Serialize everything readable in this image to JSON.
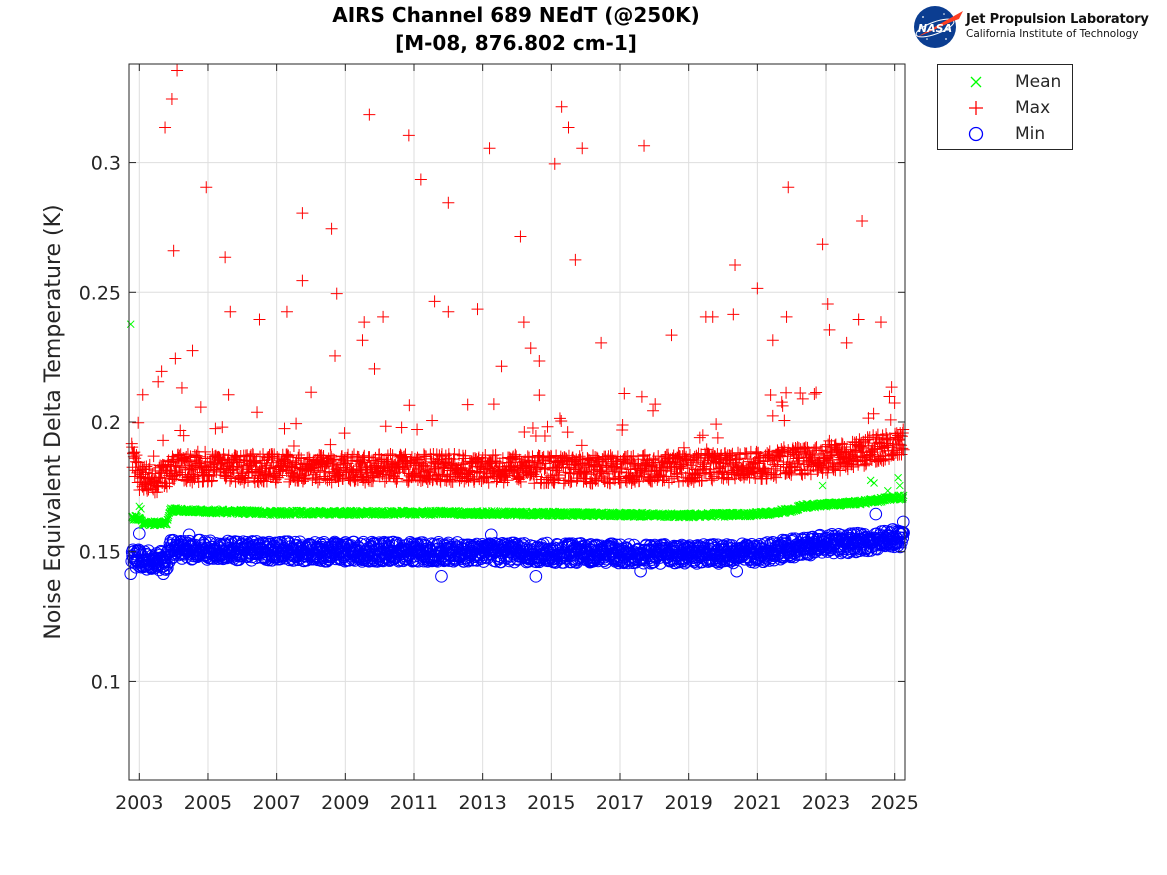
{
  "chart_data": {
    "type": "scatter",
    "title": "AIRS Channel 689 NEdT (@250K)",
    "subtitle": "[M-08, 876.802 cm-1]",
    "xlabel": "",
    "ylabel": "Noise Equivalent Delta Temperature (K)",
    "xlim": [
      2002.7,
      2025.3
    ],
    "ylim": [
      0.062,
      0.338
    ],
    "x_ticks": [
      2003,
      2005,
      2007,
      2009,
      2011,
      2013,
      2015,
      2017,
      2019,
      2021,
      2023,
      2025
    ],
    "x_tick_labels": [
      "2003",
      "2005",
      "2007",
      "2009",
      "2011",
      "2013",
      "2015",
      "2017",
      "2019",
      "2021",
      "2023",
      "2025"
    ],
    "y_ticks": [
      0.1,
      0.15,
      0.2,
      0.25,
      0.3
    ],
    "y_tick_labels": [
      "0.1",
      "0.15",
      "0.2",
      "0.25",
      "0.3"
    ],
    "grid": true,
    "legend_position": "outside-top-right",
    "series": [
      {
        "name": "Mean",
        "marker": "x",
        "color": "#00ff00",
        "trend": [
          [
            2002.8,
            0.163
          ],
          [
            2003.0,
            0.163
          ],
          [
            2003.1,
            0.161
          ],
          [
            2003.8,
            0.161
          ],
          [
            2003.9,
            0.166
          ],
          [
            2007.0,
            0.165
          ],
          [
            2012.0,
            0.165
          ],
          [
            2016.0,
            0.1645
          ],
          [
            2019.0,
            0.164
          ],
          [
            2021.0,
            0.1645
          ],
          [
            2022.0,
            0.166
          ],
          [
            2022.3,
            0.1675
          ],
          [
            2024.0,
            0.169
          ],
          [
            2025.2,
            0.171
          ]
        ],
        "points": [
          [
            2002.75,
            0.2377
          ],
          [
            2003.0,
            0.1675
          ],
          [
            2003.05,
            0.1665
          ],
          [
            2022.9,
            0.1755
          ],
          [
            2024.3,
            0.1775
          ],
          [
            2024.4,
            0.1765
          ],
          [
            2025.1,
            0.1785
          ],
          [
            2025.15,
            0.1755
          ],
          [
            2024.8,
            0.1735
          ]
        ]
      },
      {
        "name": "Max",
        "marker": "+",
        "color": "#ff0000",
        "trend": [
          [
            2002.8,
            0.185
          ],
          [
            2003.0,
            0.176
          ],
          [
            2003.8,
            0.176
          ],
          [
            2003.9,
            0.18
          ],
          [
            2008.0,
            0.18
          ],
          [
            2012.0,
            0.18
          ],
          [
            2016.0,
            0.1795
          ],
          [
            2019.0,
            0.18
          ],
          [
            2021.0,
            0.181
          ],
          [
            2022.0,
            0.1825
          ],
          [
            2023.0,
            0.1835
          ],
          [
            2024.0,
            0.186
          ],
          [
            2025.2,
            0.19
          ]
        ],
        "points": [
          [
            2003.1,
            0.2105
          ],
          [
            2003.55,
            0.2155
          ],
          [
            2003.65,
            0.2195
          ],
          [
            2003.75,
            0.3135
          ],
          [
            2003.95,
            0.3245
          ],
          [
            2004.0,
            0.266
          ],
          [
            2004.05,
            0.2245
          ],
          [
            2004.1,
            0.3355
          ],
          [
            2004.55,
            0.2275
          ],
          [
            2004.95,
            0.2905
          ],
          [
            2005.5,
            0.2635
          ],
          [
            2005.65,
            0.2425
          ],
          [
            2005.6,
            0.2105
          ],
          [
            2006.5,
            0.2395
          ],
          [
            2007.3,
            0.2425
          ],
          [
            2007.75,
            0.2805
          ],
          [
            2007.75,
            0.2545
          ],
          [
            2008.6,
            0.2745
          ],
          [
            2008.75,
            0.2495
          ],
          [
            2008.7,
            0.2255
          ],
          [
            2009.5,
            0.2315
          ],
          [
            2009.55,
            0.2385
          ],
          [
            2009.7,
            0.3185
          ],
          [
            2009.85,
            0.2205
          ],
          [
            2010.1,
            0.2405
          ],
          [
            2010.85,
            0.3105
          ],
          [
            2011.2,
            0.2935
          ],
          [
            2011.6,
            0.2465
          ],
          [
            2012.0,
            0.2425
          ],
          [
            2012.0,
            0.2845
          ],
          [
            2012.85,
            0.2435
          ],
          [
            2013.2,
            0.3055
          ],
          [
            2013.55,
            0.2215
          ],
          [
            2014.1,
            0.2715
          ],
          [
            2014.2,
            0.2385
          ],
          [
            2014.4,
            0.2285
          ],
          [
            2014.65,
            0.2235
          ],
          [
            2015.1,
            0.2995
          ],
          [
            2015.3,
            0.3215
          ],
          [
            2015.5,
            0.3135
          ],
          [
            2015.7,
            0.2625
          ],
          [
            2015.9,
            0.3055
          ],
          [
            2016.45,
            0.2305
          ],
          [
            2017.7,
            0.3065
          ],
          [
            2018.5,
            0.2335
          ],
          [
            2019.5,
            0.2405
          ],
          [
            2019.7,
            0.2405
          ],
          [
            2020.35,
            0.2605
          ],
          [
            2020.3,
            0.2415
          ],
          [
            2021.0,
            0.2515
          ],
          [
            2021.45,
            0.2315
          ],
          [
            2021.9,
            0.2905
          ],
          [
            2021.85,
            0.2405
          ],
          [
            2022.9,
            0.2685
          ],
          [
            2023.05,
            0.2455
          ],
          [
            2023.1,
            0.2355
          ],
          [
            2023.6,
            0.2305
          ],
          [
            2023.95,
            0.2395
          ],
          [
            2024.05,
            0.2775
          ],
          [
            2024.6,
            0.2385
          ]
        ]
      },
      {
        "name": "Min",
        "marker": "o",
        "color": "#0000ff",
        "trend": [
          [
            2002.8,
            0.1485
          ],
          [
            2003.0,
            0.147
          ],
          [
            2003.8,
            0.1465
          ],
          [
            2003.9,
            0.151
          ],
          [
            2008.0,
            0.15
          ],
          [
            2012.0,
            0.15
          ],
          [
            2016.0,
            0.1495
          ],
          [
            2019.0,
            0.149
          ],
          [
            2021.0,
            0.1495
          ],
          [
            2022.0,
            0.1515
          ],
          [
            2023.0,
            0.153
          ],
          [
            2024.0,
            0.1535
          ],
          [
            2025.2,
            0.1555
          ]
        ],
        "points": [
          [
            2003.0,
            0.157
          ],
          [
            2002.75,
            0.1415
          ],
          [
            2003.7,
            0.1415
          ],
          [
            2004.45,
            0.1565
          ],
          [
            2011.8,
            0.1405
          ],
          [
            2013.25,
            0.1565
          ],
          [
            2014.55,
            0.1405
          ],
          [
            2017.6,
            0.1425
          ],
          [
            2020.4,
            0.1425
          ],
          [
            2024.45,
            0.1645
          ],
          [
            2025.25,
            0.1615
          ]
        ]
      }
    ]
  },
  "logo": {
    "badge_text": "NASA",
    "line1": "Jet Propulsion Laboratory",
    "line2": "California Institute of Technology"
  }
}
